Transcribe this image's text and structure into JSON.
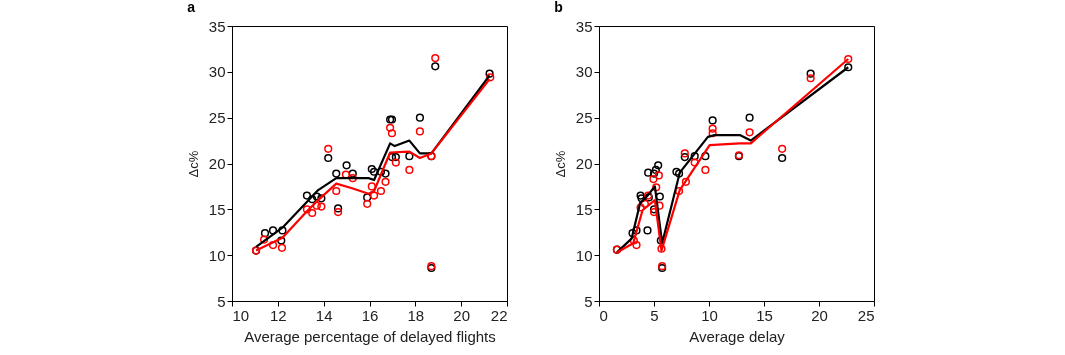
{
  "chart_data": [
    {
      "type": "scatter",
      "title": "a",
      "xlabel": "Average percentage of delayed flights",
      "ylabel": "Δc%",
      "xlim": [
        10,
        22
      ],
      "xticks": [
        10,
        12,
        14,
        16,
        18,
        20,
        22
      ],
      "ylim": [
        5,
        35
      ],
      "yticks": [
        5,
        10,
        15,
        20,
        25,
        30,
        35
      ],
      "grid": false,
      "series": [
        {
          "type": "scatter",
          "marker": "circle",
          "color": "#000000",
          "x": [
            11.05,
            11.44,
            11.79,
            12.2,
            12.15,
            13.27,
            13.5,
            13.7,
            13.9,
            14.2,
            14.55,
            14.63,
            15.0,
            15.27,
            15.9,
            16.1,
            16.2,
            16.5,
            16.7,
            16.9,
            16.98,
            16.98,
            17.15,
            17.74,
            18.2,
            18.7,
            18.7,
            18.87,
            21.24
          ],
          "values": [
            10.5,
            12.4,
            12.7,
            12.7,
            11.6,
            16.5,
            16.1,
            16.4,
            16.2,
            20.6,
            18.9,
            15.1,
            19.8,
            18.9,
            16.3,
            19.4,
            19.1,
            19.1,
            18.9,
            24.8,
            24.8,
            20.7,
            20.7,
            20.8,
            25.0,
            20.8,
            8.6,
            30.6,
            29.8
          ]
        },
        {
          "type": "scatter",
          "marker": "circle",
          "color": "#ff0000",
          "x": [
            11.05,
            11.4,
            11.79,
            12.18,
            13.27,
            13.5,
            13.7,
            13.9,
            14.2,
            14.55,
            14.63,
            14.97,
            15.27,
            15.9,
            16.1,
            16.2,
            16.5,
            16.7,
            16.9,
            16.98,
            17.15,
            17.74,
            18.2,
            18.7,
            18.7,
            18.87,
            21.27
          ],
          "values": [
            10.5,
            11.7,
            11.1,
            10.8,
            15.0,
            14.6,
            15.4,
            15.3,
            21.6,
            17.0,
            14.7,
            18.8,
            18.4,
            15.6,
            17.5,
            16.5,
            17.0,
            18.0,
            23.9,
            23.3,
            20.1,
            19.3,
            23.5,
            20.8,
            8.8,
            31.5,
            29.4
          ]
        },
        {
          "type": "line",
          "color": "#000000",
          "x": [
            11.05,
            12.2,
            13.76,
            14.55,
            15.96,
            16.2,
            16.9,
            17.1,
            17.74,
            18.2,
            18.7,
            21.24
          ],
          "values": [
            10.9,
            13.0,
            17.1,
            18.4,
            18.4,
            18.2,
            22.2,
            21.9,
            22.5,
            21.1,
            21.1,
            29.6
          ]
        },
        {
          "type": "line",
          "color": "#ff0000",
          "x": [
            11.05,
            12.2,
            13.27,
            13.76,
            14.55,
            15.24,
            15.96,
            16.2,
            16.9,
            17.74,
            18.2,
            18.7,
            21.24
          ],
          "values": [
            10.5,
            11.9,
            14.8,
            16.0,
            17.8,
            17.3,
            16.7,
            17.0,
            21.2,
            21.3,
            20.6,
            21.1,
            29.2
          ]
        }
      ]
    },
    {
      "type": "scatter",
      "title": "b",
      "xlabel": "Average delay",
      "ylabel": "Δc%",
      "xlim": [
        0,
        25
      ],
      "xticks": [
        0,
        5,
        10,
        15,
        20,
        25
      ],
      "ylim": [
        5,
        35
      ],
      "yticks": [
        5,
        10,
        15,
        20,
        25,
        30,
        35
      ],
      "grid": false,
      "series": [
        {
          "type": "scatter",
          "marker": "circle",
          "color": "#000000",
          "x": [
            1.63,
            3.05,
            3.41,
            3.78,
            3.87,
            4.41,
            4.47,
            4.53,
            5.0,
            5.0,
            5.17,
            5.38,
            5.53,
            5.62,
            5.74,
            7.04,
            7.28,
            7.8,
            8.7,
            9.67,
            10.33,
            12.72,
            13.69,
            16.65,
            19.24,
            22.66
          ],
          "values": [
            10.6,
            12.4,
            12.7,
            16.5,
            16.2,
            12.7,
            19.0,
            16.3,
            18.9,
            15.0,
            19.3,
            19.8,
            16.4,
            11.6,
            8.6,
            19.1,
            18.9,
            20.7,
            20.8,
            20.8,
            24.7,
            20.8,
            25.0,
            20.6,
            29.8,
            30.5
          ]
        },
        {
          "type": "scatter",
          "marker": "circle",
          "color": "#ff0000",
          "x": [
            1.63,
            3.17,
            3.41,
            3.78,
            4.17,
            4.47,
            4.95,
            5.0,
            5.2,
            5.44,
            5.5,
            5.68,
            5.74,
            7.28,
            7.8,
            7.9,
            8.7,
            9.67,
            10.33,
            10.33,
            12.72,
            13.69,
            16.65,
            19.24,
            22.66
          ],
          "values": [
            10.6,
            11.6,
            11.1,
            15.2,
            15.6,
            16.5,
            18.3,
            14.7,
            17.4,
            18.7,
            15.4,
            10.7,
            8.8,
            17.0,
            21.1,
            18.0,
            20.1,
            19.3,
            23.8,
            23.3,
            20.9,
            23.4,
            21.6,
            29.3,
            31.4
          ]
        },
        {
          "type": "line",
          "color": "#000000",
          "x": [
            1.63,
            2.96,
            3.74,
            4.35,
            5.08,
            5.74,
            7.34,
            9.9,
            10.5,
            12.8,
            13.8,
            22.66
          ],
          "values": [
            10.3,
            11.8,
            15.7,
            16.4,
            17.5,
            11.3,
            19.0,
            22.9,
            23.1,
            23.1,
            22.5,
            30.5
          ]
        },
        {
          "type": "line",
          "color": "#ff0000",
          "x": [
            1.63,
            3.11,
            3.96,
            5.08,
            5.68,
            7.34,
            10.06,
            12.8,
            13.8,
            22.66
          ],
          "values": [
            10.3,
            11.3,
            14.9,
            16.0,
            10.5,
            17.1,
            22.0,
            22.2,
            22.2,
            31.4
          ]
        }
      ]
    }
  ]
}
